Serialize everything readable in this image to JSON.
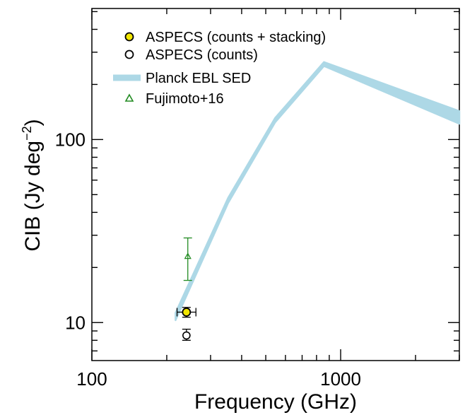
{
  "chart_data": {
    "type": "scatter",
    "xlabel": "Frequency (GHz)",
    "ylabel": "CIB (Jy deg",
    "ylabel_sup": "−2",
    "xscale": "log",
    "yscale": "log",
    "xlim": [
      100,
      3000
    ],
    "ylim": [
      6.2,
      520
    ],
    "x_ticks": [
      {
        "value": 100,
        "label": "100"
      },
      {
        "value": 1000,
        "label": "1000"
      }
    ],
    "y_ticks": [
      {
        "value": 10,
        "label": "10"
      },
      {
        "value": 100,
        "label": "100"
      }
    ],
    "grid": false,
    "legend_position": "top-left",
    "series": [
      {
        "name": "ASPECS (counts + stacking)",
        "kind": "points",
        "marker": "circle-filled",
        "color": "#f2e600",
        "edge": "#000000",
        "points": [
          {
            "x": 240,
            "y": 11.4,
            "xerr": [
              220,
              262
            ],
            "yerr": [
              10.7,
              12.1
            ]
          }
        ]
      },
      {
        "name": "ASPECS (counts)",
        "kind": "points",
        "marker": "circle-open",
        "color": "#000000",
        "points": [
          {
            "x": 240,
            "y": 8.5,
            "yerr": [
              8.0,
              9.2
            ]
          }
        ]
      },
      {
        "name": "Planck EBL SED",
        "kind": "band",
        "color": "#add8e6",
        "x": [
          217,
          353,
          545,
          857,
          3000
        ],
        "y_low": [
          10.3,
          45,
          124,
          252,
          122
        ],
        "y_high": [
          11.3,
          48,
          131,
          265,
          143
        ]
      },
      {
        "name": "Fujimoto+16",
        "kind": "points",
        "marker": "triangle-open",
        "color": "#228b22",
        "points": [
          {
            "x": 243,
            "y": 23,
            "yerr": [
              17,
              29
            ]
          }
        ]
      }
    ]
  }
}
